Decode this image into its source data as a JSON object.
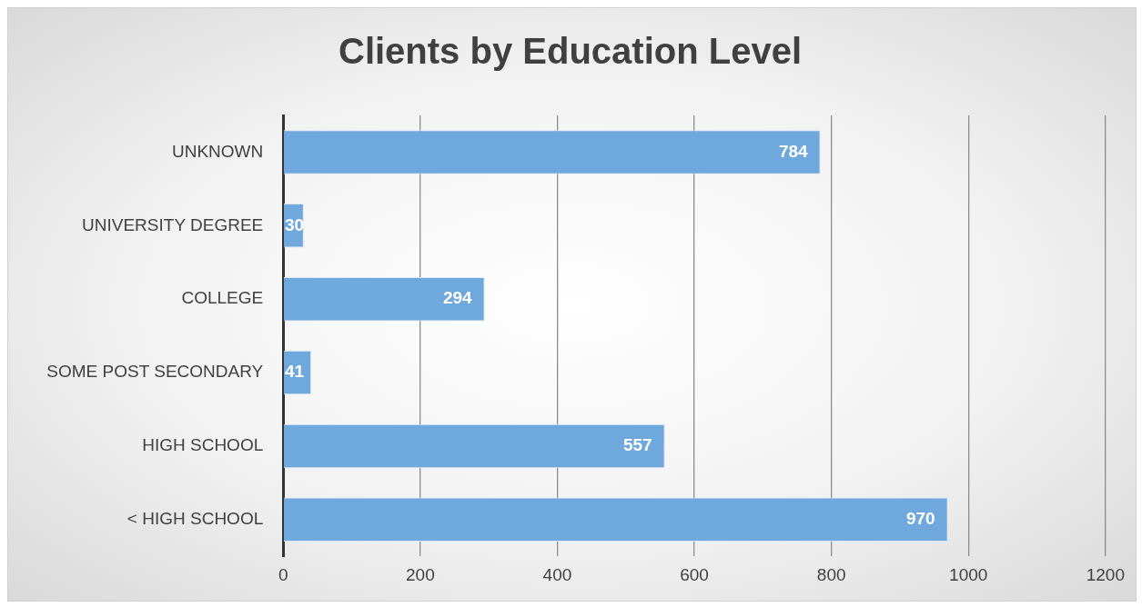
{
  "chart_data": {
    "type": "bar",
    "title": "Clients by Education Level",
    "orientation": "horizontal",
    "categories": [
      "UNKNOWN",
      "UNIVERSITY DEGREE",
      "COLLEGE",
      "SOME POST SECONDARY",
      "HIGH SCHOOL",
      "< HIGH SCHOOL"
    ],
    "values": [
      784,
      30,
      294,
      41,
      557,
      970
    ],
    "color": "#6fa8dc",
    "xlim": [
      0,
      1200
    ],
    "xticks": [
      0,
      200,
      400,
      600,
      800,
      1000,
      1200
    ],
    "grid": "x",
    "data_labels": true
  }
}
